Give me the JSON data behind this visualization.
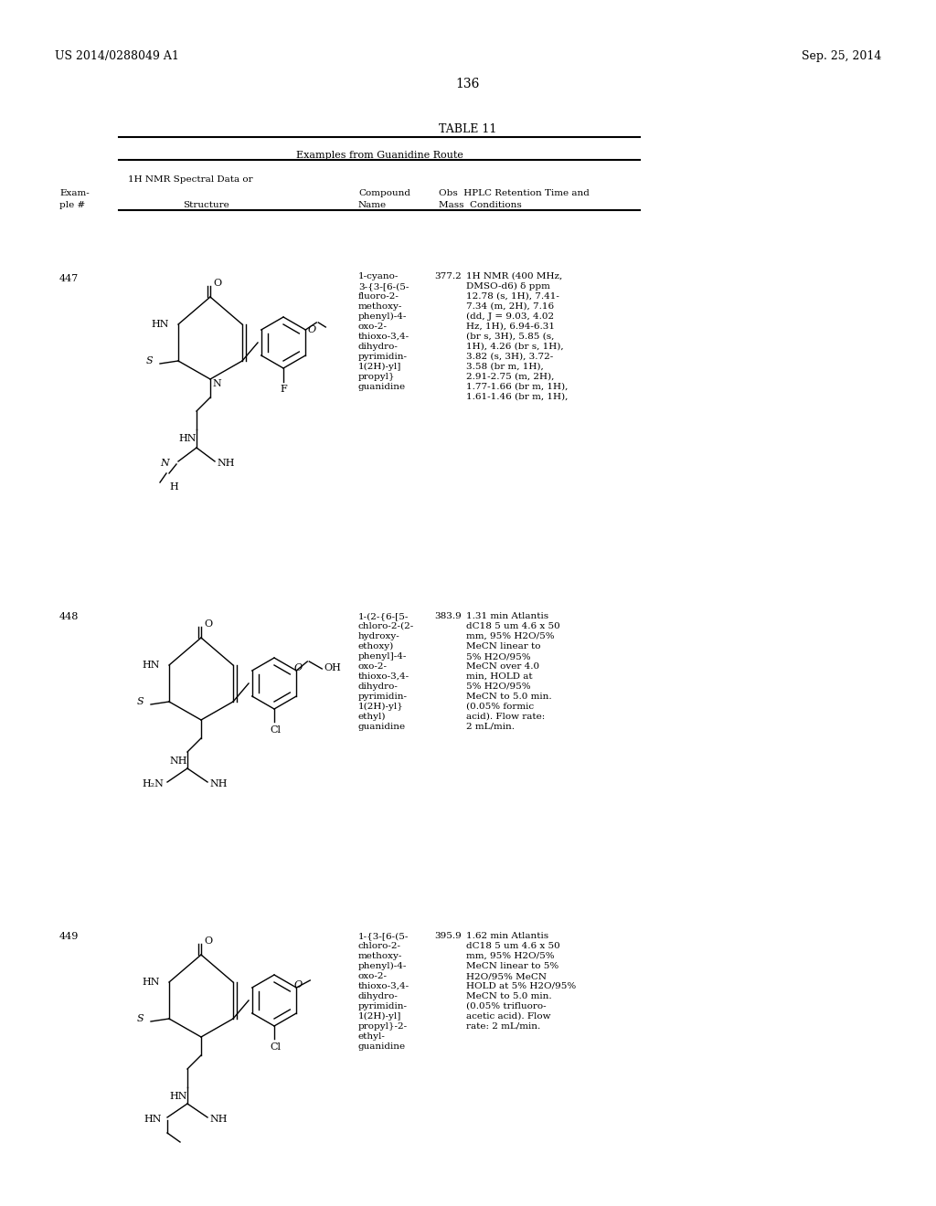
{
  "header_left": "US 2014/0288049 A1",
  "header_right": "Sep. 25, 2014",
  "page_number": "136",
  "table_title": "TABLE 11",
  "table_subtitle": "Examples from Guanidine Route",
  "col_headers": [
    [
      "Exam-",
      "ple #"
    ],
    [
      "Structure"
    ],
    [
      "Compound",
      "Name"
    ],
    [
      "1H NMR Spectral Data or",
      "Obs  HPLC Retention Time and",
      "Mass  Conditions"
    ]
  ],
  "entries": [
    {
      "example": "447",
      "compound_name": [
        "1-cyano-",
        "3-{3-[6-(5-",
        "fluoro-2-",
        "methoxy-",
        "phenyl)-4-",
        "oxo-2-",
        "thioxo-3,4-",
        "dihydro-",
        "pyrimidin-",
        "1(2H)-yl]",
        "propyl}",
        "guanidine"
      ],
      "obs_mass": "377.2",
      "spectral": [
        "1H NMR (400 MHz,",
        "DMSO-d6) δ ppm",
        "12.78 (s, 1H), 7.41-",
        "7.34 (m, 2H), 7.16",
        "(dd, J = 9.03, 4.02",
        "Hz, 1H), 6.94-6.31",
        "(br s, 3H), 5.85 (s,",
        "1H), 4.26 (br s, 1H),",
        "3.82 (s, 3H), 3.72-",
        "3.58 (br m, 1H),",
        "2.91-2.75 (m, 2H),",
        "1.77-1.66 (br m, 1H),",
        "1.61-1.46 (br m, 1H),"
      ]
    },
    {
      "example": "448",
      "compound_name": [
        "1-(2-{6-[5-",
        "chloro-2-(2-",
        "hydroxy-",
        "ethoxy)",
        "phenyl]-4-",
        "oxo-2-",
        "thioxo-3,4-",
        "dihydro-",
        "pyrimidin-",
        "1(2H)-yl}",
        "ethyl)",
        "guanidine"
      ],
      "obs_mass": "383.9",
      "spectral": [
        "1.31 min Atlantis",
        "dC18 5 um 4.6 x 50",
        "mm, 95% H2O/5%",
        "MeCN linear to",
        "5% H2O/95%",
        "MeCN over 4.0",
        "min, HOLD at",
        "5% H2O/95%",
        "MeCN to 5.0 min.",
        "(0.05% formic",
        "acid). Flow rate:",
        "2 mL/min."
      ]
    },
    {
      "example": "449",
      "compound_name": [
        "1-{3-[6-(5-",
        "chloro-2-",
        "methoxy-",
        "phenyl)-4-",
        "oxo-2-",
        "thioxo-3,4-",
        "dihydro-",
        "pyrimidin-",
        "1(2H)-yl]",
        "propyl}-2-",
        "ethyl-",
        "guanidine"
      ],
      "obs_mass": "395.9",
      "spectral": [
        "1.62 min Atlantis",
        "dC18 5 um 4.6 x 50",
        "mm, 95% H2O/5%",
        "MeCN linear to 5%",
        "H2O/95% MeCN",
        "HOLD at 5% H2O/95%",
        "MeCN to 5.0 min.",
        "(0.05% trifluoro-",
        "acetic acid). Flow",
        "rate: 2 mL/min."
      ]
    }
  ],
  "bg_color": "#ffffff",
  "text_color": "#000000",
  "font_size_header": 9,
  "font_size_body": 8,
  "font_size_page": 10,
  "font_size_table_title": 9
}
